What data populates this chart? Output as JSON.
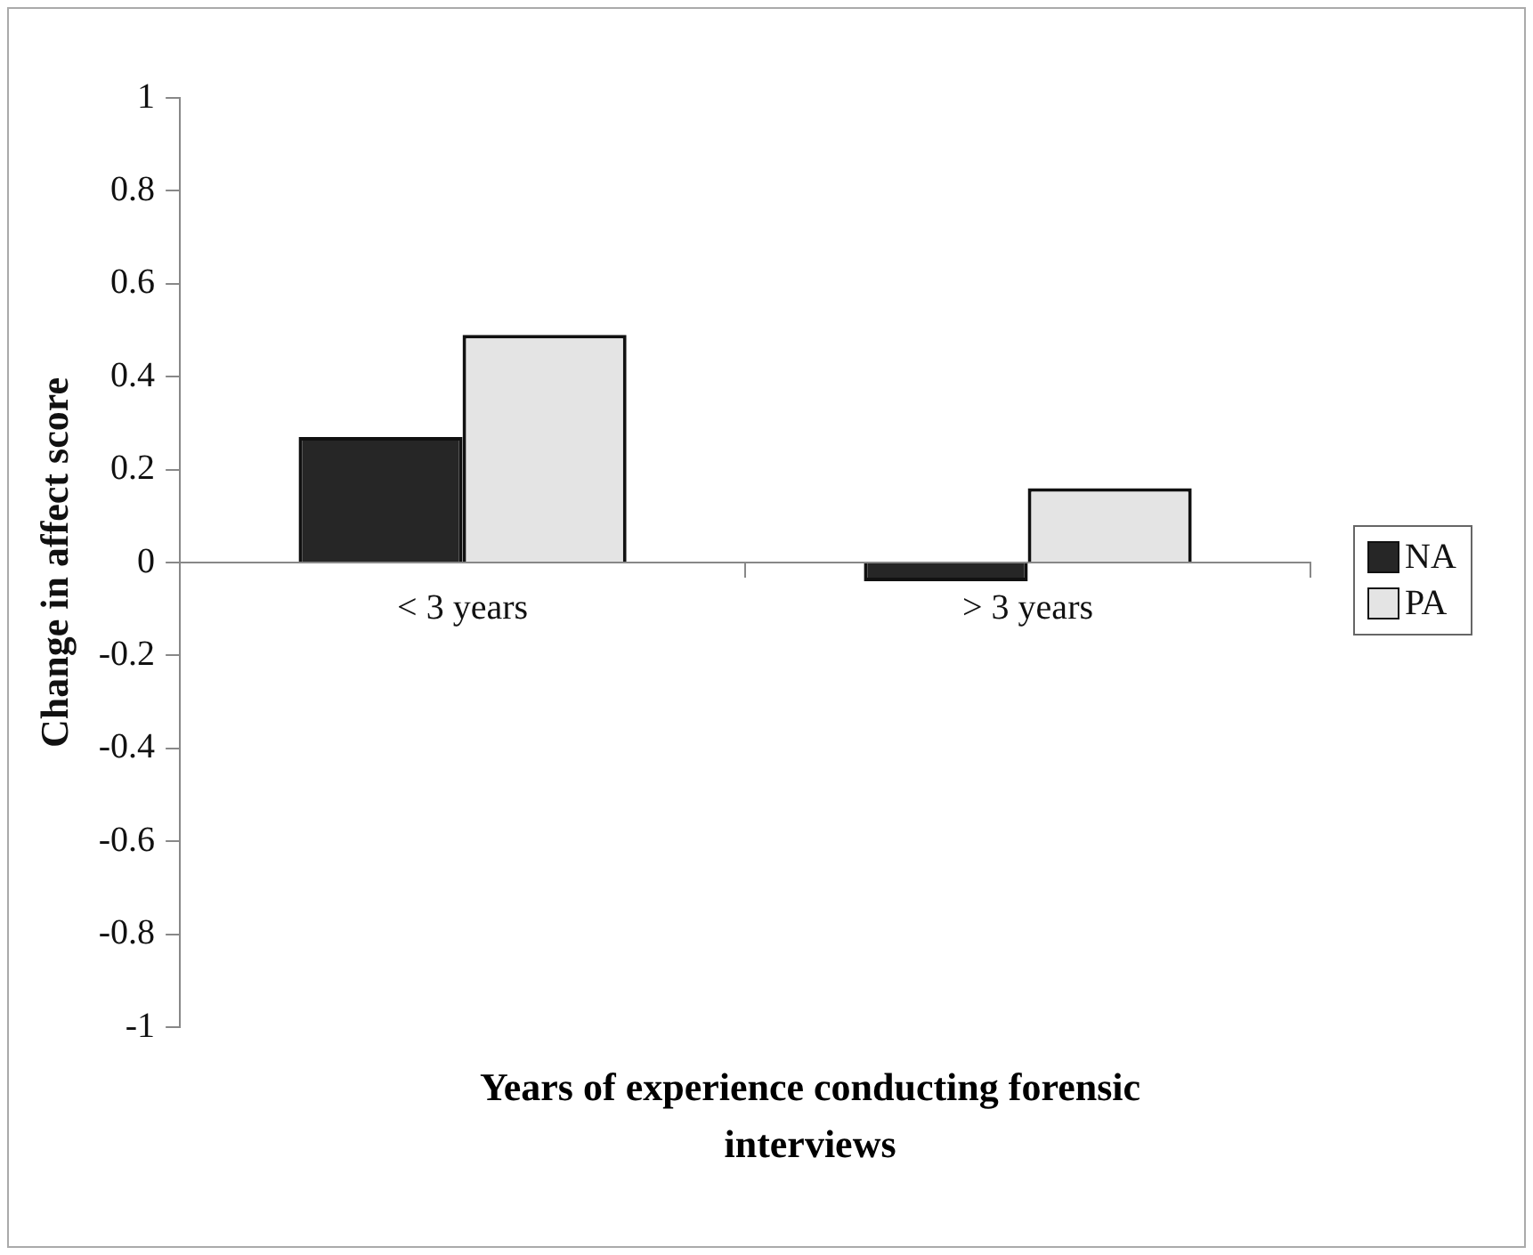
{
  "chart_data": {
    "type": "bar",
    "xlabel": "Years of experience conducting forensic interviews",
    "ylabel": "Change in affect score",
    "categories": [
      "< 3 years",
      "> 3 years"
    ],
    "series": [
      {
        "name": "NA",
        "color": "#262626",
        "values": [
          0.27,
          -0.04
        ]
      },
      {
        "name": "PA",
        "color": "#e4e4e4",
        "values": [
          0.49,
          0.16
        ]
      }
    ],
    "ylim": [
      -1,
      1
    ],
    "yticks": [
      -1,
      -0.8,
      -0.6,
      -0.4,
      -0.2,
      0,
      0.2,
      0.4,
      0.6,
      0.8,
      1
    ],
    "grid": false,
    "legend": "right"
  }
}
